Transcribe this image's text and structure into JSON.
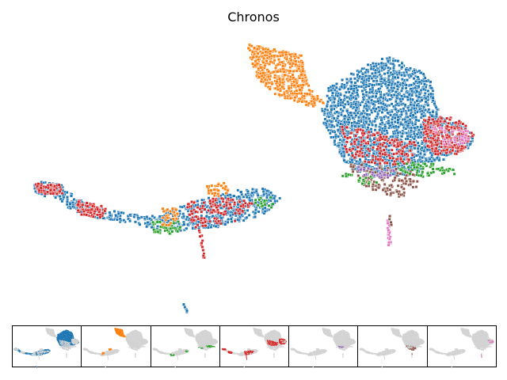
{
  "chart_data": {
    "type": "scatter",
    "title": "Chronos",
    "xlabel": "",
    "ylabel": "",
    "grid": false,
    "legend": "none",
    "axes": "hidden",
    "colors": {
      "blue": "#1f77b4",
      "orange": "#ff7f0e",
      "green": "#2ca02c",
      "red": "#d62728",
      "purple": "#9467bd",
      "brown": "#8c564b",
      "pink": "#e377c2",
      "background_gray": "#d3d3d3"
    },
    "small_multiples_order": [
      "blue",
      "orange",
      "green",
      "red",
      "purple",
      "brown",
      "pink"
    ]
  }
}
